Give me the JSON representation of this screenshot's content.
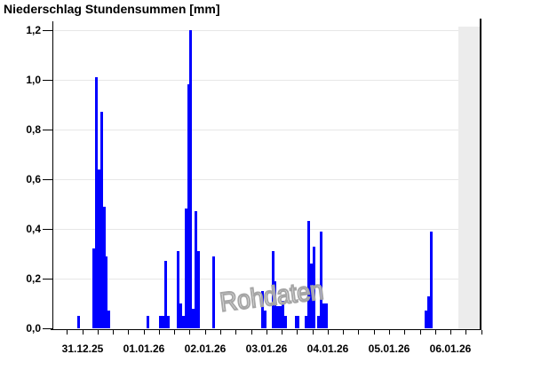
{
  "title": "Niederschlag Stundensummen [mm]",
  "watermark": "Rohdaten",
  "chart_data": {
    "type": "bar",
    "title": "Niederschlag Stundensummen [mm]",
    "ylabel": "Niederschlag Stundensummen",
    "unit": "mm",
    "y_axis": {
      "min": 0,
      "max": 1.2,
      "tick_step": 0.2,
      "tick_labels": [
        "0,0",
        "0,2",
        "0,4",
        "0,6",
        "0,8",
        "1,0",
        "1,2"
      ],
      "grid": "on"
    },
    "x_axis": {
      "day_labels": [
        "31.12.25",
        "01.01.26",
        "02.01.26",
        "03.01.26",
        "04.01.26",
        "05.01.26",
        "06.01.26"
      ],
      "range_hours": 168,
      "minor_tick_hours": 6,
      "label_anchor": "noon"
    },
    "bars_note": "each bar = one hour, [day-label, hour-of-day, value in mm]",
    "bars": [
      [
        "31.12.25",
        10,
        0.05
      ],
      [
        "31.12.25",
        16,
        0.32
      ],
      [
        "31.12.25",
        17,
        1.01
      ],
      [
        "31.12.25",
        18,
        0.64
      ],
      [
        "31.12.25",
        19,
        0.87
      ],
      [
        "31.12.25",
        20,
        0.49
      ],
      [
        "31.12.25",
        21,
        0.29
      ],
      [
        "31.12.25",
        22,
        0.07
      ],
      [
        "01.01.26",
        13,
        0.05
      ],
      [
        "01.01.26",
        18,
        0.05
      ],
      [
        "01.01.26",
        19,
        0.05
      ],
      [
        "01.01.26",
        20,
        0.27
      ],
      [
        "01.01.26",
        21,
        0.05
      ],
      [
        "02.01.26",
        1,
        0.31
      ],
      [
        "02.01.26",
        2,
        0.1
      ],
      [
        "02.01.26",
        3,
        0.05
      ],
      [
        "02.01.26",
        4,
        0.48
      ],
      [
        "02.01.26",
        5,
        0.98
      ],
      [
        "02.01.26",
        6,
        1.2
      ],
      [
        "02.01.26",
        7,
        0.08
      ],
      [
        "02.01.26",
        8,
        0.47
      ],
      [
        "02.01.26",
        9,
        0.31
      ],
      [
        "02.01.26",
        15,
        0.29
      ],
      [
        "03.01.26",
        10,
        0.15
      ],
      [
        "03.01.26",
        11,
        0.07
      ],
      [
        "03.01.26",
        14,
        0.31
      ],
      [
        "03.01.26",
        15,
        0.19
      ],
      [
        "03.01.26",
        16,
        0.09
      ],
      [
        "03.01.26",
        17,
        0.09
      ],
      [
        "03.01.26",
        18,
        0.11
      ],
      [
        "03.01.26",
        19,
        0.05
      ],
      [
        "03.01.26",
        23,
        0.05
      ],
      [
        "04.01.26",
        0,
        0.05
      ],
      [
        "04.01.26",
        3,
        0.05
      ],
      [
        "04.01.26",
        4,
        0.43
      ],
      [
        "04.01.26",
        5,
        0.26
      ],
      [
        "04.01.26",
        6,
        0.33
      ],
      [
        "04.01.26",
        8,
        0.05
      ],
      [
        "04.01.26",
        9,
        0.39
      ],
      [
        "04.01.26",
        10,
        0.1
      ],
      [
        "04.01.26",
        11,
        0.1
      ],
      [
        "06.01.26",
        2,
        0.07
      ],
      [
        "06.01.26",
        3,
        0.13
      ],
      [
        "06.01.26",
        4,
        0.39
      ]
    ],
    "no_data_band": {
      "from_day": "06.01.26",
      "from_hour": 15,
      "to_hour_end_of_axis": 168
    },
    "colors": {
      "bar": "#0000ff",
      "grid": "#e7e7e7",
      "band": "#ececec",
      "axis": "#000000",
      "watermark": "#a5a5a5"
    }
  }
}
